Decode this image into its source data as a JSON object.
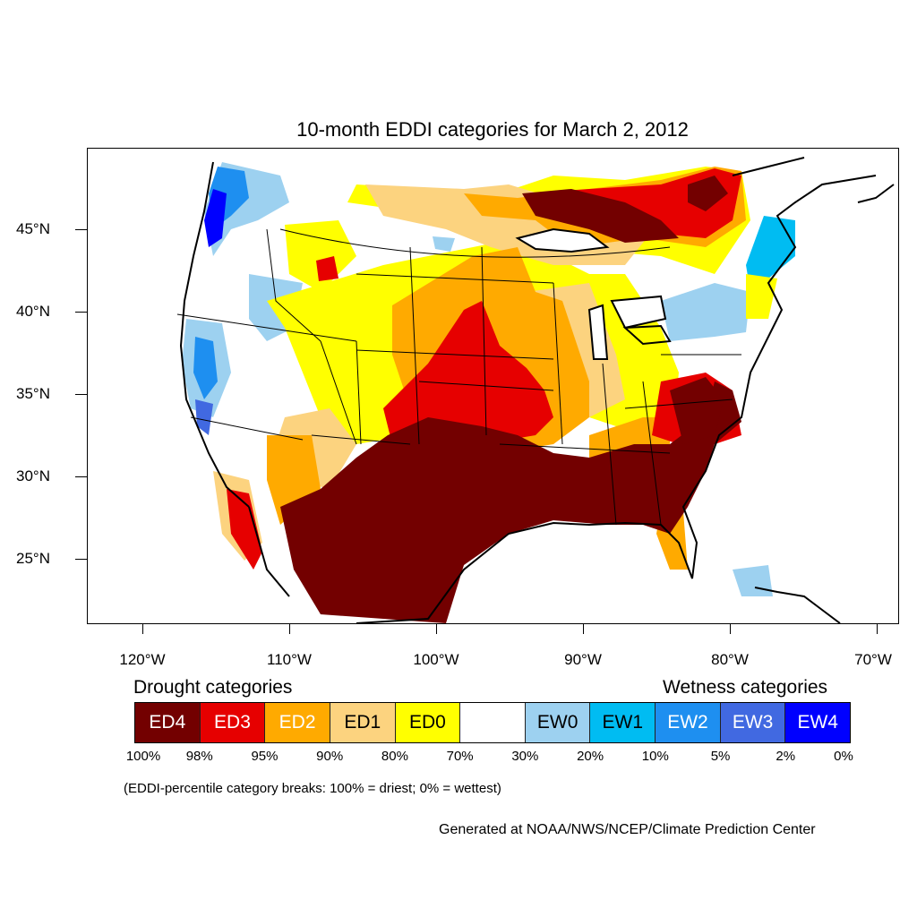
{
  "title": "10-month EDDI categories for March 2, 2012",
  "lat_labels": [
    "45°N",
    "40°N",
    "35°N",
    "30°N",
    "25°N"
  ],
  "lon_labels": [
    "120°W",
    "110°W",
    "100°W",
    "90°W",
    "80°W",
    "70°W"
  ],
  "legend": {
    "drought_heading": "Drought categories",
    "wetness_heading": "Wetness categories",
    "categories": [
      {
        "label": "ED4",
        "color": "#730000",
        "text_color": "#ffffff"
      },
      {
        "label": "ED3",
        "color": "#e60000",
        "text_color": "#ffffff"
      },
      {
        "label": "ED2",
        "color": "#ffaa00",
        "text_color": "#ffffff"
      },
      {
        "label": "ED1",
        "color": "#fcd37f",
        "text_color": "#000000"
      },
      {
        "label": "ED0",
        "color": "#ffff00",
        "text_color": "#000000"
      },
      {
        "label": "",
        "color": "#ffffff",
        "text_color": "#000000"
      },
      {
        "label": "EW0",
        "color": "#9dd1f0",
        "text_color": "#000000"
      },
      {
        "label": "EW1",
        "color": "#00bcf2",
        "text_color": "#000000"
      },
      {
        "label": "EW2",
        "color": "#1e8ff0",
        "text_color": "#ffffff"
      },
      {
        "label": "EW3",
        "color": "#4169e1",
        "text_color": "#ffffff"
      },
      {
        "label": "EW4",
        "color": "#0000ff",
        "text_color": "#ffffff"
      }
    ],
    "breaks": [
      "100%",
      "98%",
      "95%",
      "90%",
      "80%",
      "70%",
      "30%",
      "20%",
      "10%",
      "5%",
      "2%",
      "0%"
    ]
  },
  "note": "(EDDI-percentile category breaks: 100% = driest; 0% = wettest)",
  "credit": "Generated at NOAA/NWS/NCEP/Climate Prediction Center"
}
